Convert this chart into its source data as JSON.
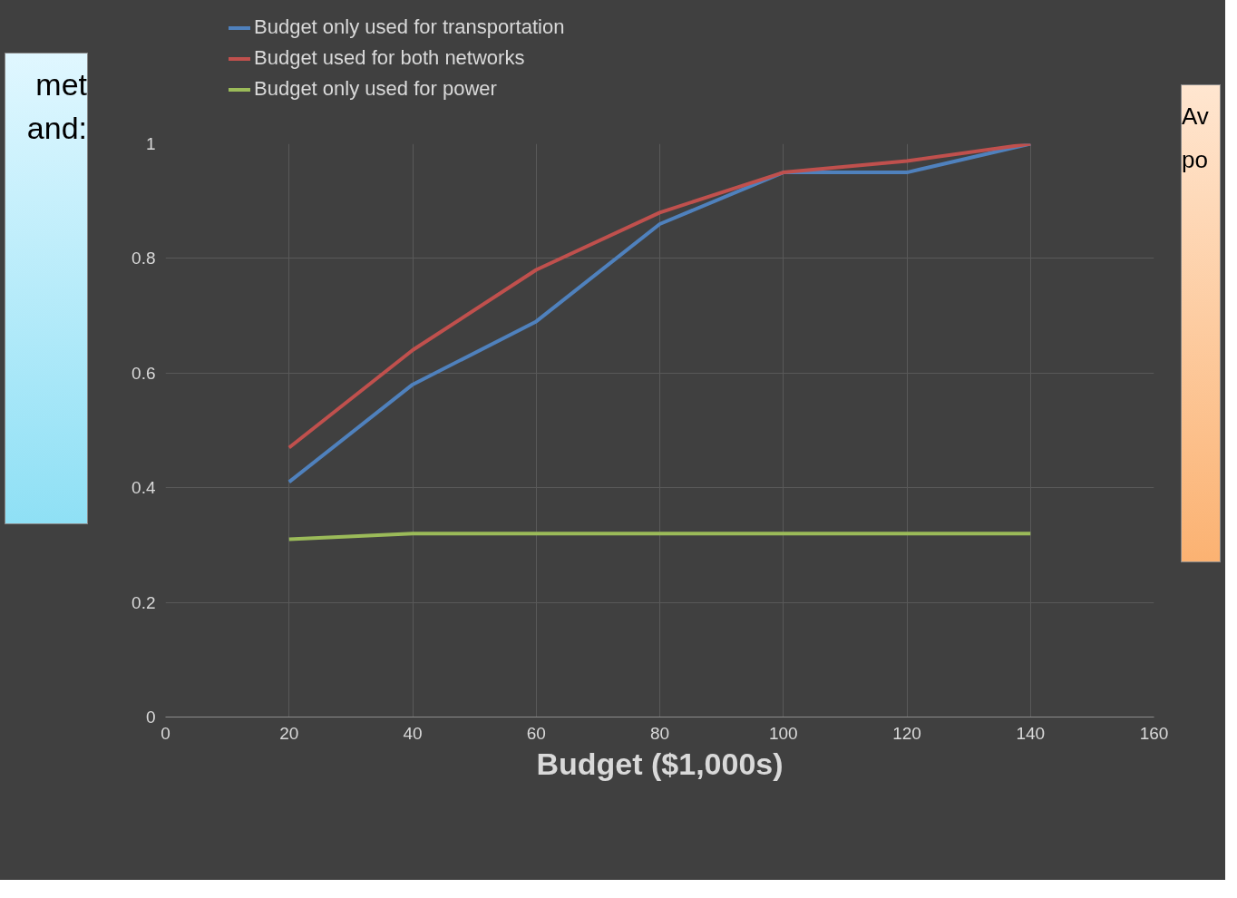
{
  "chart_data": {
    "type": "line",
    "xlabel": "Budget ($1,000s)",
    "x": [
      20,
      40,
      60,
      80,
      100,
      120,
      140
    ],
    "series": [
      {
        "name": "Budget only used for transportation",
        "color": "#4f81bd",
        "values": [
          0.41,
          0.58,
          0.69,
          0.86,
          0.95,
          0.95,
          1.0
        ]
      },
      {
        "name": "Budget used for both networks",
        "color": "#c0504d",
        "values": [
          0.47,
          0.64,
          0.78,
          0.88,
          0.95,
          0.97,
          1.0
        ]
      },
      {
        "name": "Budget only used for power",
        "color": "#9bbb59",
        "values": [
          0.31,
          0.32,
          0.32,
          0.32,
          0.32,
          0.32,
          0.32
        ]
      }
    ],
    "xlim": [
      0,
      160
    ],
    "xticks": [
      0,
      20,
      40,
      60,
      80,
      100,
      120,
      140,
      160
    ],
    "ylim": [
      0,
      1
    ],
    "yticks": [
      0,
      0.2,
      0.4,
      0.6,
      0.8,
      1
    ],
    "grid": true,
    "legend": "top left",
    "marker": "none",
    "line_style": "solid",
    "annotations": [
      "met",
      "and:",
      "Av",
      "po"
    ]
  }
}
